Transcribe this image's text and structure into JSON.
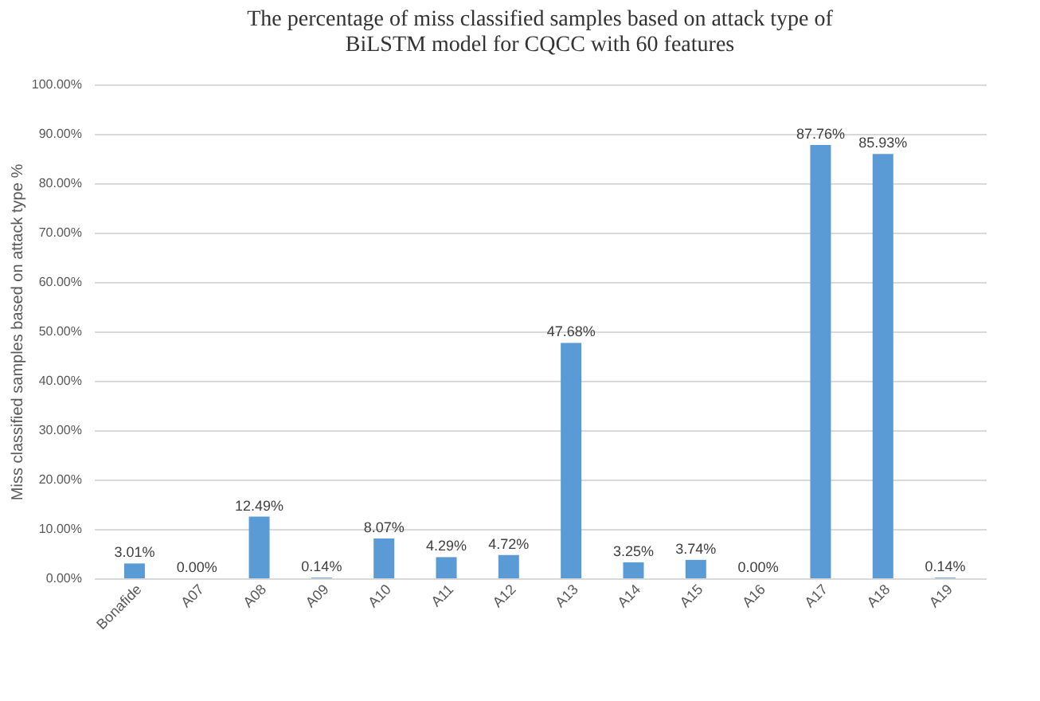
{
  "chart_data": {
    "type": "bar",
    "title": [
      "The percentage of miss classified samples based on attack type of",
      "BiLSTM model for CQCC with 60 features"
    ],
    "ylabel": "Miss classified samples based on attack type %",
    "categories": [
      "Bonafide",
      "A07",
      "A08",
      "A09",
      "A10",
      "A11",
      "A12",
      "A13",
      "A14",
      "A15",
      "A16",
      "A17",
      "A18",
      "A19"
    ],
    "values": [
      3.01,
      0,
      12.49,
      0.14,
      8.07,
      4.29,
      4.72,
      47.68,
      3.25,
      3.74,
      0,
      87.76,
      85.93,
      0.14
    ],
    "value_labels": [
      "3.01%",
      "0.00%",
      "12.49%",
      "0.14%",
      "8.07%",
      "4.29%",
      "4.72%",
      "47.68%",
      "3.25%",
      "3.74%",
      "0.00%",
      "87.76%",
      "85.93%",
      "0.14%"
    ],
    "color": "#5b9bd5",
    "ylim": [
      0,
      100
    ],
    "yticks": [
      {
        "value": 0,
        "label": "0.00%"
      },
      {
        "value": 10,
        "label": "10.00%"
      },
      {
        "value": 20,
        "label": "20.00%"
      },
      {
        "value": 30,
        "label": "30.00%"
      },
      {
        "value": 40,
        "label": "40.00%"
      },
      {
        "value": 50,
        "label": "50.00%"
      },
      {
        "value": 60,
        "label": "60.00%"
      },
      {
        "value": 70,
        "label": "70.00%"
      },
      {
        "value": 80,
        "label": "80.00%"
      },
      {
        "value": 90,
        "label": "90.00%"
      },
      {
        "value": 100,
        "label": "100.00%"
      }
    ],
    "grid": "y"
  }
}
